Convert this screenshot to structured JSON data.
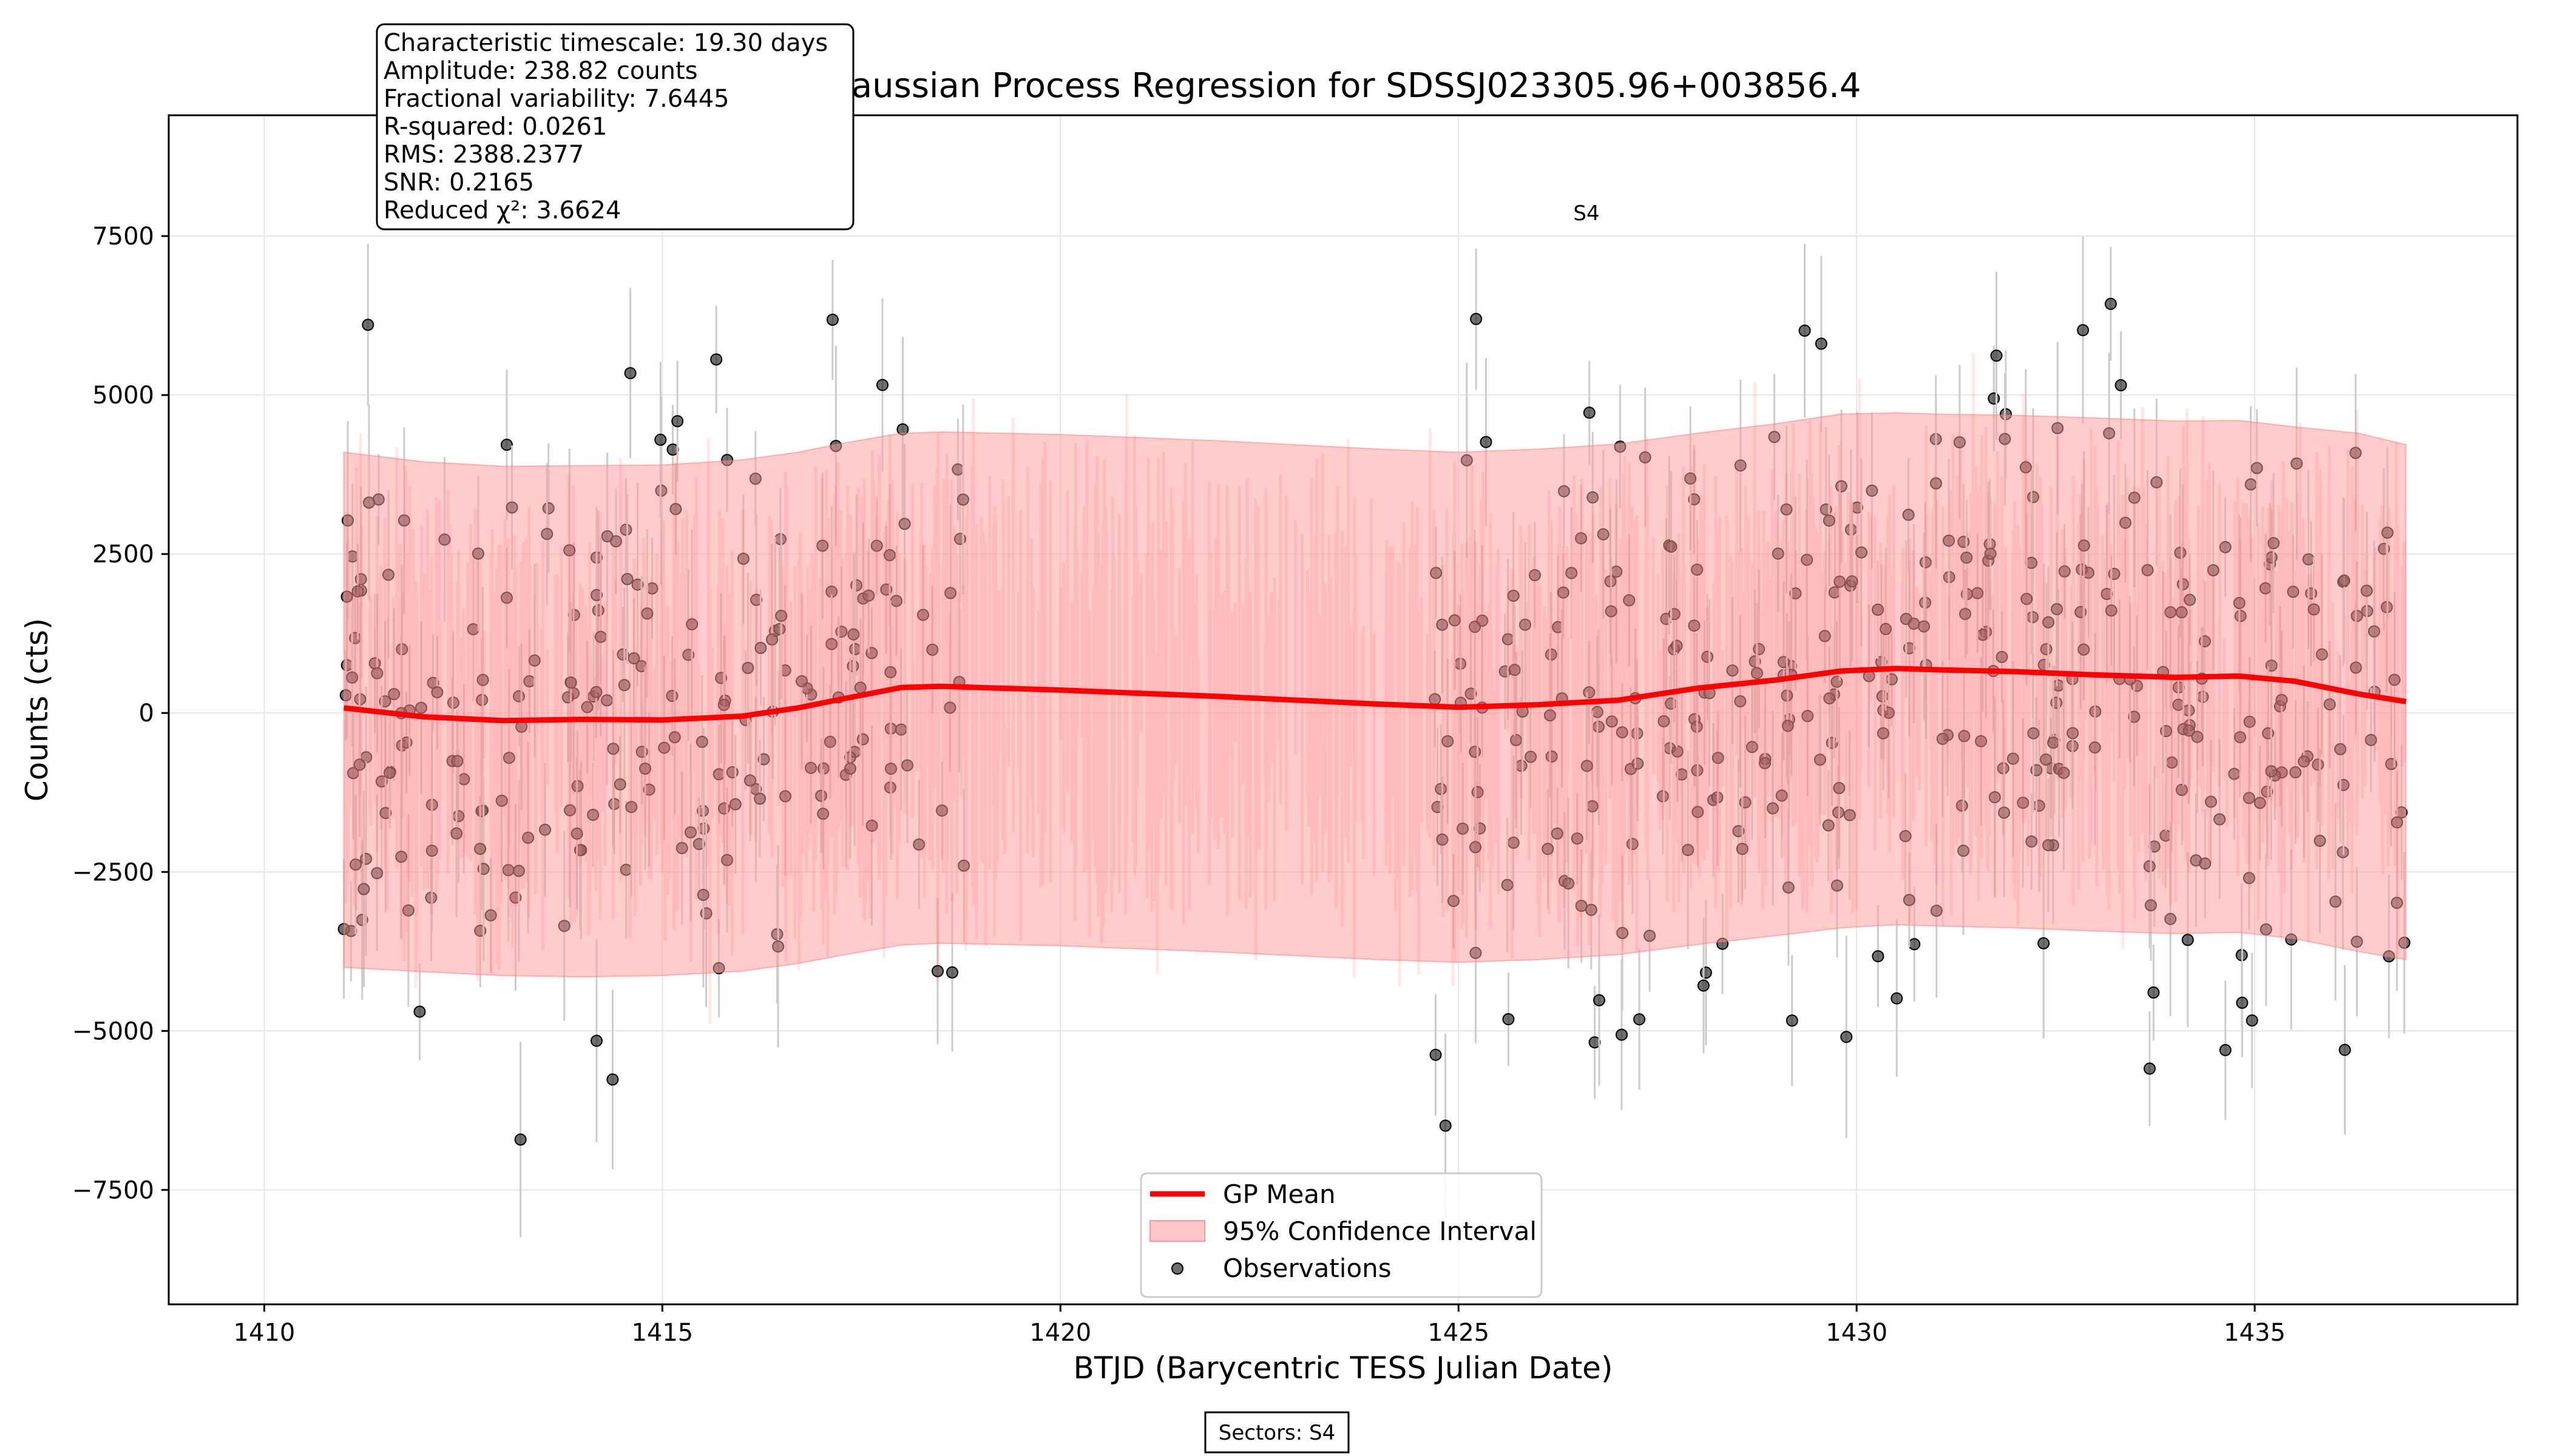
{
  "chart_data": {
    "type": "scatter",
    "title": "Gaussian Process Regression for SDSSJ023305.96+003856.4",
    "xlabel": "BTJD (Barycentric TESS Julian Date)",
    "ylabel": "Counts (cts)",
    "xlim": [
      1408.8,
      1438.3
    ],
    "ylim": [
      -9300,
      9400
    ],
    "xticks": [
      1410,
      1415,
      1420,
      1425,
      1430,
      1435
    ],
    "yticks": [
      -7500,
      -5000,
      -2500,
      0,
      2500,
      5000,
      7500
    ],
    "xtick_labels": [
      "1410",
      "1415",
      "1420",
      "1425",
      "1430",
      "1435"
    ],
    "ytick_labels": [
      "−7500",
      "−5000",
      "−2500",
      "0",
      "2500",
      "5000",
      "7500"
    ],
    "grid": true,
    "legend_position": "bottom-center",
    "legend": [
      "GP Mean",
      "95% Confidence Interval",
      "Observations"
    ],
    "colors": {
      "gp_mean": "#ff0000",
      "confidence": "#ff9999",
      "observations": "#222222",
      "errorbar": "#cccccc"
    },
    "stats_box": [
      "Characteristic timescale: 19.30 days",
      "Amplitude: 238.82 counts",
      "Fractional variability: 7.6445",
      "R-squared: 0.0261",
      "RMS: 2388.2377",
      "SNR: 0.2165",
      "Reduced χ²: 3.6624"
    ],
    "sector_annotation": {
      "label": "S4",
      "x": 1426.8,
      "y": 7750
    },
    "sectors_footer": "Sectors: S4",
    "series": [
      {
        "name": "GP Mean",
        "type": "line",
        "x": [
          1411.0,
          1412.0,
          1413.0,
          1414.0,
          1415.0,
          1416.0,
          1416.7,
          1417.3,
          1418.0,
          1418.5,
          1420.0,
          1422.0,
          1424.0,
          1425.0,
          1426.0,
          1427.0,
          1428.0,
          1429.0,
          1429.8,
          1430.5,
          1431.0,
          1432.0,
          1433.0,
          1434.0,
          1434.8,
          1435.5,
          1436.3,
          1436.9
        ],
        "y": [
          80,
          -60,
          -120,
          -100,
          -110,
          -50,
          80,
          230,
          400,
          420,
          360,
          260,
          140,
          90,
          130,
          200,
          390,
          520,
          660,
          700,
          680,
          650,
          600,
          560,
          580,
          500,
          300,
          180
        ]
      },
      {
        "name": "95% Confidence Interval",
        "type": "area",
        "x": [
          1411.0,
          1412.0,
          1413.0,
          1414.0,
          1415.0,
          1416.0,
          1416.7,
          1417.3,
          1418.0,
          1418.5,
          1420.0,
          1422.0,
          1424.0,
          1425.0,
          1426.0,
          1427.0,
          1428.0,
          1429.0,
          1429.8,
          1430.5,
          1431.0,
          1432.0,
          1433.0,
          1434.0,
          1434.8,
          1435.5,
          1436.3,
          1436.9
        ],
        "upper": [
          4100,
          3950,
          3880,
          3890,
          3900,
          3980,
          4100,
          4250,
          4400,
          4420,
          4380,
          4280,
          4150,
          4100,
          4150,
          4230,
          4400,
          4550,
          4700,
          4720,
          4700,
          4680,
          4640,
          4590,
          4600,
          4500,
          4400,
          4220
        ],
        "lower": [
          -4000,
          -4070,
          -4130,
          -4150,
          -4130,
          -4060,
          -3940,
          -3800,
          -3650,
          -3620,
          -3660,
          -3760,
          -3880,
          -3920,
          -3880,
          -3800,
          -3640,
          -3500,
          -3380,
          -3330,
          -3350,
          -3380,
          -3430,
          -3470,
          -3450,
          -3550,
          -3750,
          -3880
        ]
      },
      {
        "name": "Observations",
        "type": "scatter",
        "seed": 4217,
        "segments": [
          [
            1411.0,
            1418.8
          ],
          [
            1424.7,
            1436.9
          ]
        ],
        "n_points": 600,
        "y_std": 2388
      }
    ]
  }
}
